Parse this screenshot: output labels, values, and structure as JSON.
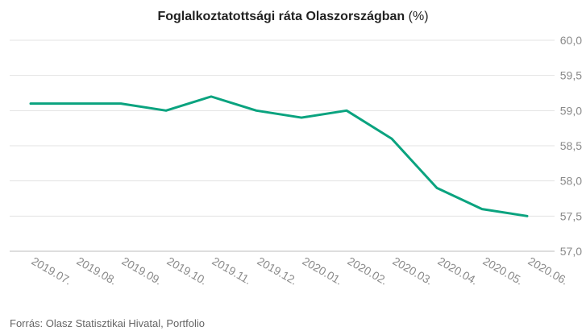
{
  "chart_data": {
    "type": "line",
    "title": "Foglalkoztatottsági ráta Olaszországban",
    "title_unit": "(%)",
    "categories": [
      "2019.07.",
      "2019.08.",
      "2019.09.",
      "2019.10.",
      "2019.11.",
      "2019.12.",
      "2020.01.",
      "2020.02.",
      "2020.03.",
      "2020.04.",
      "2020.05.",
      "2020.06."
    ],
    "series": [
      {
        "values": [
          59.1,
          59.1,
          59.1,
          59.0,
          59.2,
          59.0,
          58.9,
          59.0,
          58.6,
          57.9,
          57.6,
          57.5
        ],
        "color": "#0aa37f"
      }
    ],
    "ylim": [
      57.0,
      60.0
    ],
    "yticks": [
      "57,0",
      "57,5",
      "58,0",
      "58,5",
      "59,0",
      "59,5",
      "60,0"
    ],
    "y_axis_position": "right",
    "grid": true,
    "legend": "none",
    "source": "Forrás: Olasz Statisztikai Hivatal, Portfolio"
  }
}
